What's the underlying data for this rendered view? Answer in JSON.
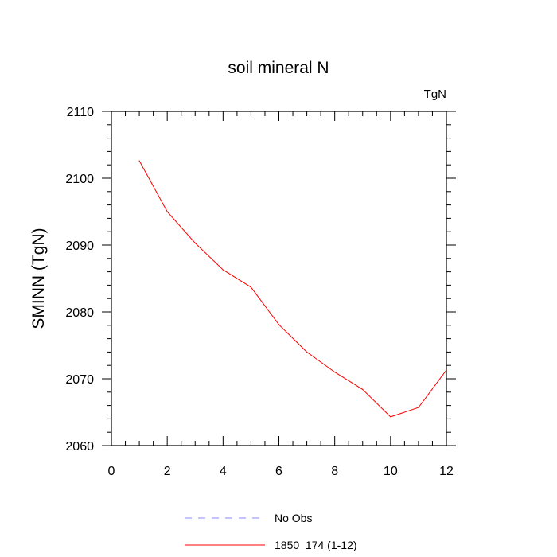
{
  "chart_data": {
    "type": "line",
    "title": "soil mineral N",
    "units_label": "TgN",
    "xlabel": "",
    "ylabel": "SMINN  (TgN)",
    "xlim": [
      0,
      12
    ],
    "ylim": [
      2060,
      2110
    ],
    "x_ticks": [
      0,
      2,
      4,
      6,
      8,
      10,
      12
    ],
    "x_tick_labels": [
      "0",
      "2",
      "4",
      "6",
      "8",
      "10",
      "12"
    ],
    "y_ticks": [
      2060,
      2070,
      2080,
      2090,
      2100,
      2110
    ],
    "y_tick_labels": [
      "2060",
      "2070",
      "2080",
      "2090",
      "2100",
      "2110"
    ],
    "grid": false,
    "legend_position": "bottom",
    "x": [
      1,
      2,
      3,
      4,
      5,
      6,
      7,
      8,
      9,
      10,
      11,
      12
    ],
    "series": [
      {
        "name": "1850_174 (1-12)",
        "color": "#ff0000",
        "style": "solid",
        "values": [
          2102.6,
          2095.0,
          2090.3,
          2086.3,
          2083.7,
          2078.1,
          2074.0,
          2071.0,
          2068.4,
          2064.3,
          2065.7,
          2071.3
        ]
      }
    ],
    "legend": [
      {
        "label": "No Obs",
        "color": "#8888ff",
        "style": "dashed"
      },
      {
        "label": "1850_174 (1-12)",
        "color": "#ff0000",
        "style": "solid"
      }
    ]
  }
}
